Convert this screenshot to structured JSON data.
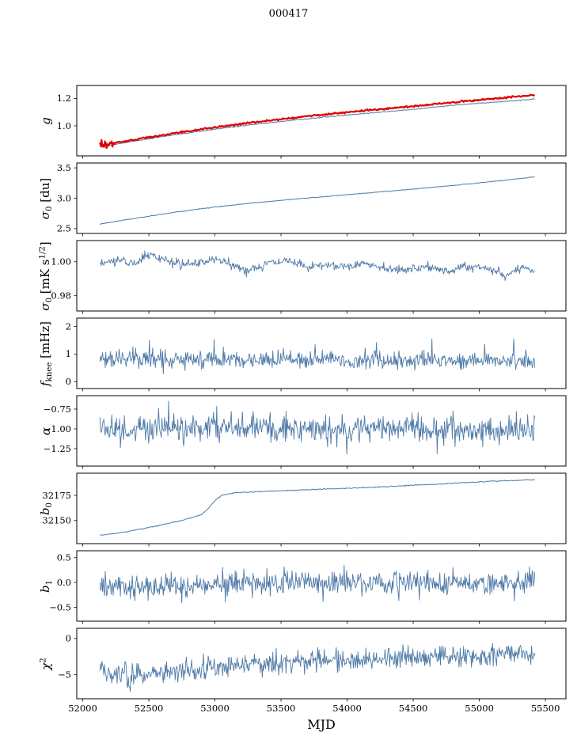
{
  "chart_data": {
    "type": "line",
    "title": "000417",
    "xlabel": "MJD",
    "grid": false,
    "legend": "none",
    "xlim": [
      51955,
      55655
    ],
    "x_data_range": [
      52130,
      55420
    ],
    "xticks": [
      {
        "v": 52000,
        "label": "52000"
      },
      {
        "v": 52500,
        "label": "52500"
      },
      {
        "v": 53000,
        "label": "53000"
      },
      {
        "v": 53500,
        "label": "53500"
      },
      {
        "v": 54000,
        "label": "54000"
      },
      {
        "v": 54500,
        "label": "54500"
      },
      {
        "v": 55000,
        "label": "55000"
      },
      {
        "v": 55500,
        "label": "55500"
      }
    ],
    "colors": {
      "line": "#4f7aa8",
      "overlay": "#e00000",
      "axis": "#000000"
    },
    "panels": [
      {
        "id": "g",
        "ylabel_parts": [
          {
            "t": "g",
            "style": "italic"
          }
        ],
        "ylim": [
          0.78,
          1.295
        ],
        "yticks": [
          {
            "v": 1.0,
            "label": "1.0"
          },
          {
            "v": 1.2,
            "label": "1.2"
          }
        ],
        "series": [
          {
            "name": "g-fit",
            "color": "#4f7aa8",
            "width": 1,
            "n": 520,
            "seed": 11,
            "noise": 0.0015,
            "trend": [
              [
                52130,
                0.845
              ],
              [
                52400,
                0.89
              ],
              [
                52700,
                0.935
              ],
              [
                53000,
                0.975
              ],
              [
                53300,
                1.01
              ],
              [
                53600,
                1.042
              ],
              [
                53900,
                1.07
              ],
              [
                54200,
                1.096
              ],
              [
                54500,
                1.12
              ],
              [
                54800,
                1.15
              ],
              [
                55100,
                1.172
              ],
              [
                55420,
                1.195
              ]
            ]
          },
          {
            "name": "g-measured",
            "color": "#e00000",
            "width": 2.2,
            "n": 520,
            "seed": 12,
            "noise": 0.003,
            "start_noise": {
              "until": 52230,
              "amp": 0.016
            },
            "trend": [
              [
                52130,
                0.856
              ],
              [
                52400,
                0.9
              ],
              [
                52700,
                0.947
              ],
              [
                53000,
                0.989
              ],
              [
                53300,
                1.026
              ],
              [
                53600,
                1.06
              ],
              [
                53900,
                1.09
              ],
              [
                54200,
                1.117
              ],
              [
                54500,
                1.142
              ],
              [
                54800,
                1.172
              ],
              [
                55100,
                1.198
              ],
              [
                55420,
                1.225
              ]
            ]
          }
        ]
      },
      {
        "id": "sigma0-du",
        "ylabel_parts": [
          {
            "t": "σ",
            "style": "italic"
          },
          {
            "t": "0",
            "style": "sub"
          },
          {
            "t": " [du]",
            "style": "normal"
          }
        ],
        "ylim": [
          2.42,
          3.58
        ],
        "yticks": [
          {
            "v": 2.5,
            "label": "2.5"
          },
          {
            "v": 3.0,
            "label": "3.0"
          },
          {
            "v": 3.5,
            "label": "3.5"
          }
        ],
        "series": [
          {
            "name": "sigma0-du",
            "color": "#4f7aa8",
            "width": 1,
            "n": 520,
            "seed": 21,
            "noise": 0.003,
            "trend": [
              [
                52130,
                2.575
              ],
              [
                52400,
                2.67
              ],
              [
                52700,
                2.77
              ],
              [
                53000,
                2.855
              ],
              [
                53300,
                2.925
              ],
              [
                53600,
                2.985
              ],
              [
                53900,
                3.04
              ],
              [
                54200,
                3.095
              ],
              [
                54500,
                3.15
              ],
              [
                54800,
                3.21
              ],
              [
                55100,
                3.275
              ],
              [
                55420,
                3.35
              ]
            ]
          }
        ]
      },
      {
        "id": "sigma0-mk",
        "ylabel_parts": [
          {
            "t": "σ",
            "style": "italic"
          },
          {
            "t": "0",
            "style": "sub"
          },
          {
            "t": " [mK s",
            "style": "normal"
          },
          {
            "t": "1/2",
            "style": "sup"
          },
          {
            "t": "]",
            "style": "normal"
          }
        ],
        "ylim": [
          0.971,
          1.0125
        ],
        "yticks": [
          {
            "v": 0.98,
            "label": "0.98"
          },
          {
            "v": 1.0,
            "label": "1.00"
          }
        ],
        "series": [
          {
            "name": "sigma0-mk",
            "color": "#4f7aa8",
            "width": 0.9,
            "n": 660,
            "seed": 31,
            "noise": 0.0013,
            "trend": [
              [
                52130,
                0.9985
              ],
              [
                52250,
                1.001
              ],
              [
                52400,
                0.9995
              ],
              [
                52500,
                1.004
              ],
              [
                52600,
                1.002
              ],
              [
                52750,
                0.998
              ],
              [
                52900,
                0.9995
              ],
              [
                53000,
                1.002
              ],
              [
                53100,
                0.9985
              ],
              [
                53250,
                0.995
              ],
              [
                53400,
                0.999
              ],
              [
                53550,
                1.0005
              ],
              [
                53700,
                0.997
              ],
              [
                53850,
                0.9985
              ],
              [
                54000,
                0.9975
              ],
              [
                54150,
                0.999
              ],
              [
                54300,
                0.996
              ],
              [
                54450,
                0.9955
              ],
              [
                54600,
                0.997
              ],
              [
                54750,
                0.9945
              ],
              [
                54900,
                0.997
              ],
              [
                55050,
                0.9965
              ],
              [
                55200,
                0.992
              ],
              [
                55320,
                0.9965
              ],
              [
                55420,
                0.995
              ]
            ]
          }
        ]
      },
      {
        "id": "fknee",
        "ylabel_parts": [
          {
            "t": "f",
            "style": "italic"
          },
          {
            "t": "knee",
            "style": "sub"
          },
          {
            "t": " [mHz]",
            "style": "normal"
          }
        ],
        "ylim": [
          -0.25,
          2.3
        ],
        "yticks": [
          {
            "v": 0,
            "label": "0"
          },
          {
            "v": 1,
            "label": "1"
          },
          {
            "v": 2,
            "label": "2"
          }
        ],
        "series": [
          {
            "name": "fknee",
            "color": "#4f7aa8",
            "width": 0.9,
            "n": 660,
            "seed": 41,
            "noise": 0.16,
            "spikes": {
              "prob": 0.012,
              "amp": 0.9,
              "dir": "up"
            },
            "trend": [
              [
                52130,
                0.82
              ],
              [
                53000,
                0.8
              ],
              [
                54000,
                0.78
              ],
              [
                55420,
                0.74
              ]
            ]
          }
        ]
      },
      {
        "id": "alpha",
        "ylabel_parts": [
          {
            "t": "α",
            "style": "italic"
          }
        ],
        "ylim": [
          -1.47,
          -0.58
        ],
        "yticks": [
          {
            "v": -0.75,
            "label": "−0.75"
          },
          {
            "v": -1.0,
            "label": "−1.00"
          },
          {
            "v": -1.25,
            "label": "−1.25"
          }
        ],
        "series": [
          {
            "name": "alpha",
            "color": "#4f7aa8",
            "width": 0.9,
            "n": 660,
            "seed": 51,
            "noise": 0.085,
            "spikes": {
              "prob": 0.015,
              "amp": 0.3,
              "dir": "both"
            },
            "trend": [
              [
                52130,
                -1.0
              ],
              [
                55420,
                -1.0
              ]
            ]
          }
        ]
      },
      {
        "id": "b0",
        "ylabel_parts": [
          {
            "t": "b",
            "style": "italic"
          },
          {
            "t": "0",
            "style": "sub"
          }
        ],
        "ylim": [
          32127,
          32197
        ],
        "yticks": [
          {
            "v": 32150,
            "label": "32150"
          },
          {
            "v": 32175,
            "label": "32175"
          }
        ],
        "series": [
          {
            "name": "b0",
            "color": "#4f7aa8",
            "width": 1,
            "n": 520,
            "seed": 61,
            "noise": 0.25,
            "trend": [
              [
                52130,
                32135.5
              ],
              [
                52250,
                32137
              ],
              [
                52500,
                32143
              ],
              [
                52750,
                32150
              ],
              [
                52900,
                32156
              ],
              [
                52950,
                32162
              ],
              [
                53000,
                32170
              ],
              [
                53050,
                32175
              ],
              [
                53150,
                32177.5
              ],
              [
                53300,
                32178.5
              ],
              [
                53600,
                32180
              ],
              [
                53900,
                32181.5
              ],
              [
                54200,
                32183
              ],
              [
                54500,
                32185
              ],
              [
                54800,
                32187
              ],
              [
                55100,
                32189
              ],
              [
                55420,
                32190.5
              ]
            ]
          }
        ]
      },
      {
        "id": "b1",
        "ylabel_parts": [
          {
            "t": "b",
            "style": "italic"
          },
          {
            "t": "1",
            "style": "sub"
          }
        ],
        "ylim": [
          -0.78,
          0.64
        ],
        "yticks": [
          {
            "v": -0.5,
            "label": "−0.5"
          },
          {
            "v": 0.0,
            "label": "0.0"
          },
          {
            "v": 0.5,
            "label": "0.5"
          }
        ],
        "series": [
          {
            "name": "b1",
            "color": "#4f7aa8",
            "width": 0.9,
            "n": 660,
            "seed": 71,
            "noise": 0.12,
            "spikes": {
              "prob": 0.01,
              "amp": 0.35,
              "dir": "both"
            },
            "trend": [
              [
                52130,
                -0.05
              ],
              [
                52600,
                -0.09
              ],
              [
                52900,
                -0.07
              ],
              [
                53200,
                -0.02
              ],
              [
                53600,
                0.0
              ],
              [
                54000,
                -0.02
              ],
              [
                54500,
                0.0
              ],
              [
                55000,
                -0.01
              ],
              [
                55420,
                0.0
              ]
            ]
          }
        ]
      },
      {
        "id": "chi2",
        "ylabel_parts": [
          {
            "t": "χ",
            "style": "italic"
          },
          {
            "t": "2",
            "style": "sup"
          }
        ],
        "ylim": [
          -8.3,
          1.4
        ],
        "yticks": [
          {
            "v": -5,
            "label": "−5"
          },
          {
            "v": 0,
            "label": "0"
          }
        ],
        "series": [
          {
            "name": "chi2",
            "color": "#4f7aa8",
            "width": 0.9,
            "n": 660,
            "seed": 81,
            "noise": 0.75,
            "spikes": {
              "prob": 0.008,
              "amp": 1.5,
              "dir": "both"
            },
            "trend": [
              [
                52130,
                -4.3
              ],
              [
                52350,
                -5.1
              ],
              [
                52600,
                -4.8
              ],
              [
                52850,
                -4.2
              ],
              [
                53100,
                -3.8
              ],
              [
                53400,
                -3.5
              ],
              [
                53700,
                -3.2
              ],
              [
                54000,
                -3.0
              ],
              [
                54300,
                -2.8
              ],
              [
                54600,
                -2.6
              ],
              [
                54900,
                -2.45
              ],
              [
                55150,
                -2.3
              ],
              [
                55420,
                -2.1
              ]
            ]
          }
        ]
      }
    ]
  }
}
